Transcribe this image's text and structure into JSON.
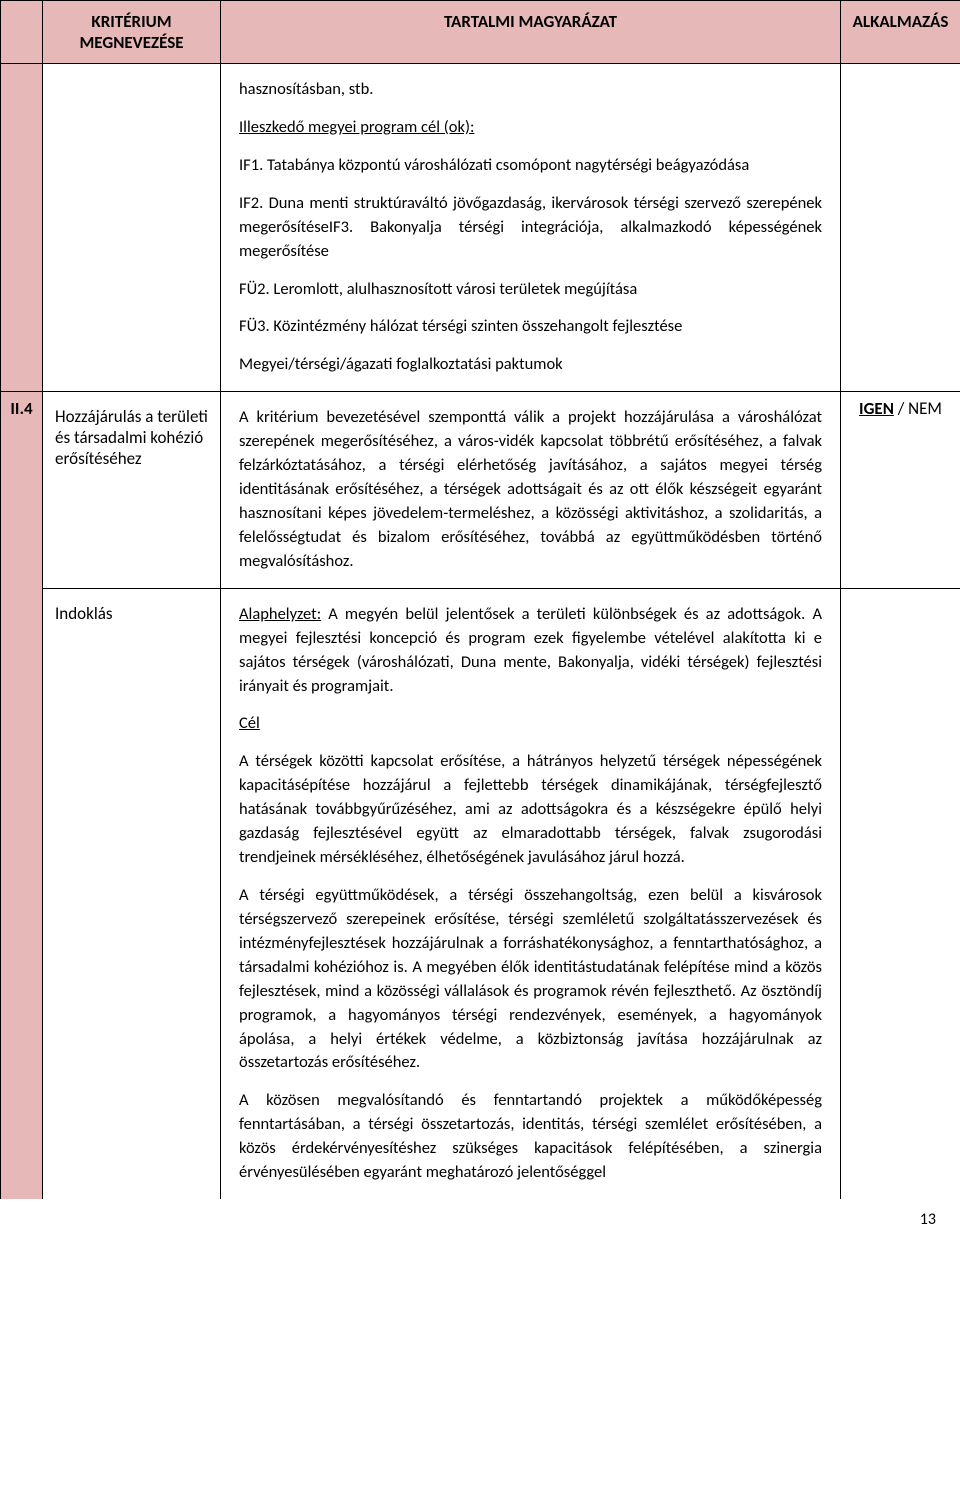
{
  "colors": {
    "header_bg": "#e6b8b7",
    "border": "#000000",
    "text": "#000000",
    "page_bg": "#ffffff"
  },
  "header": {
    "col1": "KRITÉRIUM MEGNEVEZÉSE",
    "col2": "TARTALMI MAGYARÁZAT",
    "col3": "ALKALMAZÁS"
  },
  "row_prev": {
    "p1": "hasznosításban, stb.",
    "p2_u": "Illeszkedő megyei program cél (ok):",
    "p3": "IF1. Tatabánya központú városhálózati csomópont nagytérségi beágyazódása",
    "p4": "IF2. Duna menti struktúraváltó jövőgazdaság, ikervárosok térségi szervező szerepének megerősítéseIF3. Bakonyalja térségi integrációja, alkalmazkodó képességének megerősítése",
    "p5": "FÜ2. Leromlott, alulhasznosított városi területek megújítása",
    "p6": "FÜ3. Közintézmény hálózat térségi szinten összehangolt fejlesztése",
    "p7": "Megyei/térségi/ágazati foglalkoztatási paktumok"
  },
  "row_ii4": {
    "num": "II.4",
    "label_a": "Hozzájárulás a területi és társadalmi kohézió erősítéséhez",
    "content_a": "A kritérium bevezetésével szemponttá válik a projekt hozzájárulása a városhálózat szerepének megerősítéséhez, a város-vidék kapcsolat többrétű erősítéséhez, a falvak felzárkóztatásához, a térségi elérhetőség javításához, a sajátos megyei térség identitásának erősítéséhez, a térségek adottságait és az ott élők készségeit egyaránt hasznosítani képes jövedelem-termeléshez, a közösségi aktivitáshoz, a szolidaritás, a felelősségtudat és bizalom erősítéséhez, továbbá az együttműködésben történő megvalósításhoz.",
    "apply_igen": "IGEN",
    "apply_sep": " / ",
    "apply_nem": "NEM",
    "label_b": "Indoklás",
    "b_p1_lead_u": "Alaphelyzet:",
    "b_p1_rest": " A megyén belül jelentősek a területi különbségek és az adottságok. A megyei fejlesztési koncepció és program ezek figyelembe vételével alakította ki e sajátos térségek (városhálózati, Duna mente, Bakonyalja, vidéki térségek) fejlesztési irányait és programjait.",
    "b_p2_u": "Cél",
    "b_p3": "A térségek közötti kapcsolat erősítése, a hátrányos helyzetű térségek népességének kapacitásépítése hozzájárul a fejlettebb térségek dinamikájának, térségfejlesztő hatásának továbbgyűrűzéséhez, ami az adottságokra és a készségekre épülő helyi gazdaság fejlesztésével együtt az elmaradottabb térségek, falvak zsugorodási trendjeinek mérsékléséhez, élhetőségének javulásához járul hozzá.",
    "b_p4": "A térségi együttműködések, a térségi összehangoltság, ezen belül a kisvárosok térségszervező szerepeinek erősítése, térségi szemléletű szolgáltatásszervezések és intézményfejlesztések hozzájárulnak a forráshatékonysághoz, a fenntarthatósághoz, a társadalmi kohézióhoz is. A megyében élők identitástudatának felépítése mind a közös fejlesztések, mind a közösségi vállalások és programok révén fejleszthető. Az ösztöndíj programok, a hagyományos térségi rendezvények, események, a hagyományok ápolása, a helyi értékek védelme, a közbiztonság javítása hozzájárulnak az összetartozás erősítéséhez.",
    "b_p5": "A közösen megvalósítandó és fenntartandó projektek a működőképesség fenntartásában, a térségi összetartozás, identitás, térségi szemlélet erősítésében, a közös érdekérvényesítéshez szükséges kapacitások felépítésében, a szinergia érvényesülésében egyaránt meghatározó jelentőséggel"
  },
  "page_number": "13"
}
